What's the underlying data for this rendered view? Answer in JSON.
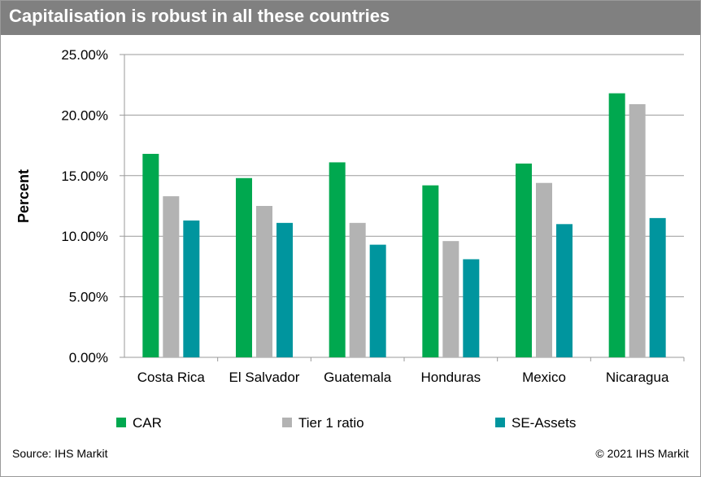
{
  "header": {
    "title": "Capitalisation is robust in all these countries"
  },
  "footer": {
    "source": "Source: IHS Markit",
    "copyright": "© 2021 IHS Markit"
  },
  "chart_data": {
    "type": "bar",
    "title": "",
    "xlabel": "",
    "ylabel": "Percent",
    "ylim": [
      0,
      25
    ],
    "yticks": [
      0,
      5,
      10,
      15,
      20,
      25
    ],
    "ytick_labels": [
      "0.00%",
      "5.00%",
      "10.00%",
      "15.00%",
      "20.00%",
      "25.00%"
    ],
    "grid": "horizontal",
    "legend_position": "bottom",
    "categories": [
      "Costa Rica",
      "El Salvador",
      "Guatemala",
      "Honduras",
      "Mexico",
      "Nicaragua"
    ],
    "series": [
      {
        "name": "CAR",
        "color": "#00a84f",
        "values": [
          16.8,
          14.8,
          16.1,
          14.2,
          16.0,
          21.8
        ]
      },
      {
        "name": "Tier 1 ratio",
        "color": "#b3b3b3",
        "values": [
          13.3,
          12.5,
          11.1,
          9.6,
          14.4,
          20.9
        ]
      },
      {
        "name": "SE-Assets",
        "color": "#00959e",
        "values": [
          11.3,
          11.1,
          9.3,
          8.1,
          11.0,
          11.5
        ]
      }
    ]
  }
}
